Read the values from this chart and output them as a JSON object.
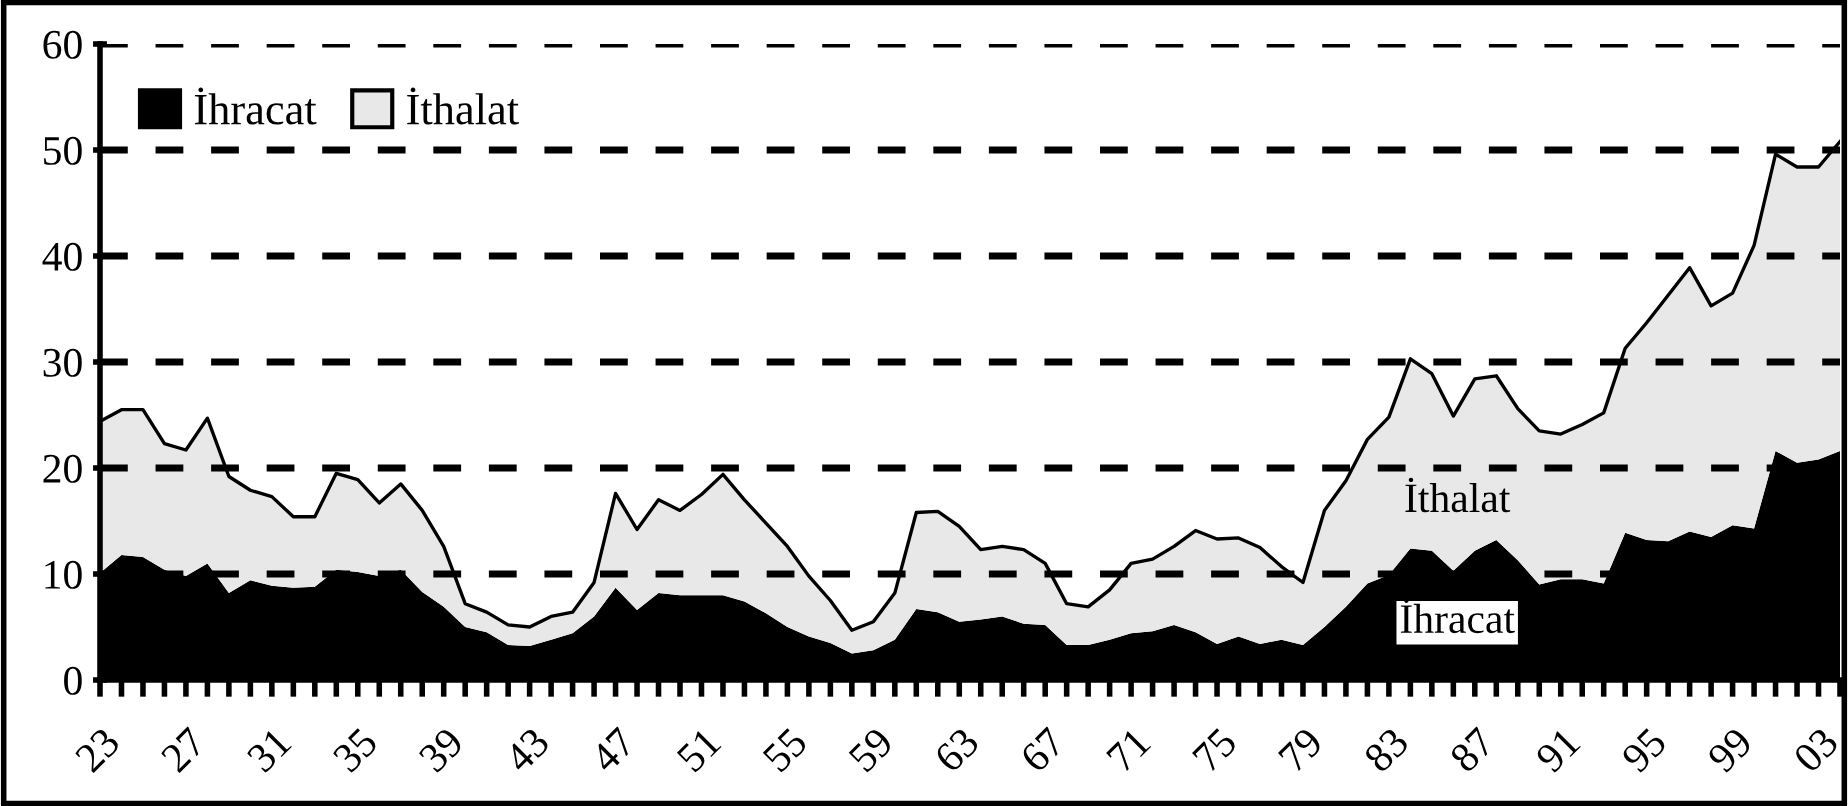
{
  "chart_data": {
    "type": "area",
    "stacked": true,
    "x": [
      1923,
      1924,
      1925,
      1926,
      1927,
      1928,
      1929,
      1930,
      1931,
      1932,
      1933,
      1934,
      1935,
      1936,
      1937,
      1938,
      1939,
      1940,
      1941,
      1942,
      1943,
      1944,
      1945,
      1946,
      1947,
      1948,
      1949,
      1950,
      1951,
      1952,
      1953,
      1954,
      1955,
      1956,
      1957,
      1958,
      1959,
      1960,
      1961,
      1962,
      1963,
      1964,
      1965,
      1966,
      1967,
      1968,
      1969,
      1970,
      1971,
      1972,
      1973,
      1974,
      1975,
      1976,
      1977,
      1978,
      1979,
      1980,
      1981,
      1982,
      1983,
      1984,
      1985,
      1986,
      1987,
      1988,
      1989,
      1990,
      1991,
      1992,
      1993,
      1994,
      1995,
      1996,
      1997,
      1998,
      1999,
      2000,
      2001,
      2002,
      2003,
      2004
    ],
    "series": [
      {
        "name": "İhracat",
        "color": "#000000",
        "values": [
          10.1,
          11.8,
          11.6,
          10.4,
          9.8,
          11.0,
          8.2,
          9.4,
          8.9,
          8.7,
          8.8,
          10.4,
          10.2,
          9.8,
          10.4,
          8.3,
          6.9,
          5.0,
          4.5,
          3.3,
          3.2,
          3.8,
          4.4,
          6.0,
          8.7,
          6.6,
          8.2,
          8.0,
          8.0,
          8.0,
          7.4,
          6.3,
          5.0,
          4.1,
          3.5,
          2.5,
          2.8,
          3.8,
          6.7,
          6.4,
          5.5,
          5.7,
          6.0,
          5.3,
          5.2,
          3.3,
          3.3,
          3.8,
          4.4,
          4.6,
          5.2,
          4.5,
          3.4,
          4.1,
          3.4,
          3.8,
          3.3,
          5.0,
          6.9,
          9.1,
          9.9,
          12.4,
          12.2,
          10.3,
          12.2,
          13.2,
          11.3,
          9.0,
          9.5,
          9.5,
          9.1,
          13.9,
          13.2,
          13.1,
          14.0,
          13.5,
          14.6,
          14.3,
          21.6,
          20.5,
          20.8,
          21.6
        ]
      },
      {
        "name": "İthalat",
        "color": "#e8e8e8",
        "values": [
          14.3,
          13.7,
          13.9,
          11.9,
          11.9,
          13.7,
          11.0,
          8.5,
          8.4,
          6.7,
          6.6,
          9.1,
          8.7,
          6.9,
          8.1,
          7.7,
          5.7,
          2.2,
          1.9,
          1.9,
          1.8,
          2.2,
          2.0,
          3.2,
          8.9,
          7.6,
          8.8,
          8.0,
          9.5,
          11.4,
          9.6,
          8.5,
          7.6,
          5.7,
          4.0,
          2.2,
          2.7,
          4.4,
          9.1,
          9.5,
          9.0,
          6.6,
          6.6,
          7.0,
          5.8,
          3.9,
          3.6,
          4.7,
          6.6,
          6.8,
          7.4,
          9.6,
          9.9,
          9.3,
          9.1,
          6.9,
          5.9,
          11.0,
          11.9,
          13.6,
          14.9,
          17.9,
          16.7,
          14.6,
          16.2,
          15.5,
          14.3,
          14.5,
          13.7,
          14.6,
          16.1,
          17.4,
          20.5,
          23.2,
          24.9,
          21.8,
          21.9,
          26.7,
          28.0,
          27.9,
          27.6,
          29.2
        ]
      }
    ],
    "xlim": [
      1923,
      2004
    ],
    "xticks": [
      {
        "value": 1923,
        "label": "23"
      },
      {
        "value": 1924,
        "label": null
      },
      {
        "value": 1925,
        "label": null
      },
      {
        "value": 1926,
        "label": null
      },
      {
        "value": 1927,
        "label": "27"
      },
      {
        "value": 1928,
        "label": null
      },
      {
        "value": 1929,
        "label": null
      },
      {
        "value": 1930,
        "label": null
      },
      {
        "value": 1931,
        "label": "31"
      },
      {
        "value": 1932,
        "label": null
      },
      {
        "value": 1933,
        "label": null
      },
      {
        "value": 1934,
        "label": null
      },
      {
        "value": 1935,
        "label": "35"
      },
      {
        "value": 1936,
        "label": null
      },
      {
        "value": 1937,
        "label": null
      },
      {
        "value": 1938,
        "label": null
      },
      {
        "value": 1939,
        "label": "39"
      },
      {
        "value": 1940,
        "label": null
      },
      {
        "value": 1941,
        "label": null
      },
      {
        "value": 1942,
        "label": null
      },
      {
        "value": 1943,
        "label": "43"
      },
      {
        "value": 1944,
        "label": null
      },
      {
        "value": 1945,
        "label": null
      },
      {
        "value": 1946,
        "label": null
      },
      {
        "value": 1947,
        "label": "47"
      },
      {
        "value": 1948,
        "label": null
      },
      {
        "value": 1949,
        "label": null
      },
      {
        "value": 1950,
        "label": null
      },
      {
        "value": 1951,
        "label": "51"
      },
      {
        "value": 1952,
        "label": null
      },
      {
        "value": 1953,
        "label": null
      },
      {
        "value": 1954,
        "label": null
      },
      {
        "value": 1955,
        "label": "55"
      },
      {
        "value": 1956,
        "label": null
      },
      {
        "value": 1957,
        "label": null
      },
      {
        "value": 1958,
        "label": null
      },
      {
        "value": 1959,
        "label": "59"
      },
      {
        "value": 1960,
        "label": null
      },
      {
        "value": 1961,
        "label": null
      },
      {
        "value": 1962,
        "label": null
      },
      {
        "value": 1963,
        "label": "63"
      },
      {
        "value": 1964,
        "label": null
      },
      {
        "value": 1965,
        "label": null
      },
      {
        "value": 1966,
        "label": null
      },
      {
        "value": 1967,
        "label": "67"
      },
      {
        "value": 1968,
        "label": null
      },
      {
        "value": 1969,
        "label": null
      },
      {
        "value": 1970,
        "label": null
      },
      {
        "value": 1971,
        "label": "71"
      },
      {
        "value": 1972,
        "label": null
      },
      {
        "value": 1973,
        "label": null
      },
      {
        "value": 1974,
        "label": null
      },
      {
        "value": 1975,
        "label": "75"
      },
      {
        "value": 1976,
        "label": null
      },
      {
        "value": 1977,
        "label": null
      },
      {
        "value": 1978,
        "label": null
      },
      {
        "value": 1979,
        "label": "79"
      },
      {
        "value": 1980,
        "label": null
      },
      {
        "value": 1981,
        "label": null
      },
      {
        "value": 1982,
        "label": null
      },
      {
        "value": 1983,
        "label": "83"
      },
      {
        "value": 1984,
        "label": null
      },
      {
        "value": 1985,
        "label": null
      },
      {
        "value": 1986,
        "label": null
      },
      {
        "value": 1987,
        "label": "87"
      },
      {
        "value": 1988,
        "label": null
      },
      {
        "value": 1989,
        "label": null
      },
      {
        "value": 1990,
        "label": null
      },
      {
        "value": 1991,
        "label": "91"
      },
      {
        "value": 1992,
        "label": null
      },
      {
        "value": 1993,
        "label": null
      },
      {
        "value": 1994,
        "label": null
      },
      {
        "value": 1995,
        "label": "95"
      },
      {
        "value": 1996,
        "label": null
      },
      {
        "value": 1997,
        "label": null
      },
      {
        "value": 1998,
        "label": null
      },
      {
        "value": 1999,
        "label": "99"
      },
      {
        "value": 2000,
        "label": null
      },
      {
        "value": 2001,
        "label": null
      },
      {
        "value": 2002,
        "label": null
      },
      {
        "value": 2003,
        "label": "03"
      },
      {
        "value": 2004,
        "label": null
      }
    ],
    "ylim": [
      0,
      60
    ],
    "yticks": [
      0,
      10,
      20,
      30,
      40,
      50,
      60
    ],
    "grid": "y",
    "legend": "top left",
    "annotations": [
      "İthalat",
      "İhracat"
    ]
  }
}
